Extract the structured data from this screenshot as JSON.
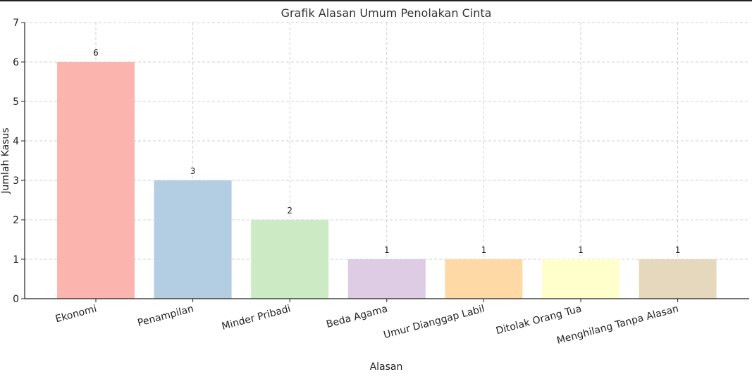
{
  "chart_data": {
    "type": "bar",
    "title": "Grafik Alasan Umum Penolakan Cinta",
    "xlabel": "Alasan",
    "ylabel": "Jumlah Kasus",
    "categories": [
      "Ekonomi",
      "Penampilan",
      "Minder Pribadi",
      "Beda Agama",
      "Umur Dianggap Labil",
      "Ditolak Orang Tua",
      "Menghilang Tanpa Alasan"
    ],
    "values": [
      6,
      3,
      2,
      1,
      1,
      1,
      1
    ],
    "data_labels": [
      "6",
      "3",
      "2",
      "1",
      "1",
      "1",
      "1"
    ],
    "colors": [
      "#fbb4ae",
      "#b3cde3",
      "#ccebc5",
      "#decbe4",
      "#fed9a6",
      "#ffffcc",
      "#e5d8bd"
    ],
    "ylim": [
      0,
      7
    ],
    "yticks": [
      0,
      1,
      2,
      3,
      4,
      5,
      6,
      7
    ],
    "grid": true,
    "legend": "none"
  }
}
